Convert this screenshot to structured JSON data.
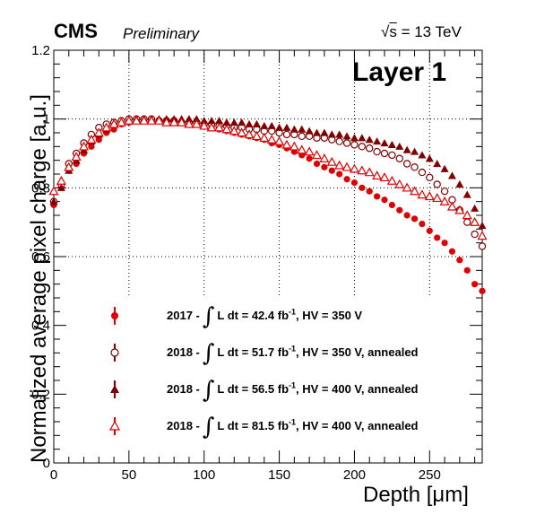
{
  "header": {
    "experiment": "CMS",
    "status": "Preliminary",
    "energy": "= 13 TeV",
    "energy_symbol": "s",
    "panel_label": "Layer 1"
  },
  "chart_data": {
    "type": "scatter",
    "xlabel": "Depth [μm]",
    "ylabel": "Normalized average pixel charge [a.u.]",
    "xlim": [
      0,
      285
    ],
    "ylim": [
      0,
      1.2
    ],
    "x_ticks": [
      "0",
      "50",
      "100",
      "150",
      "200",
      "250"
    ],
    "y_ticks": [
      "0",
      "0.2",
      "0.4",
      "0.6",
      "0.8",
      "1",
      "1.2"
    ],
    "grid": "dotted",
    "legend_position": "bottom-left",
    "x": [
      0,
      5,
      10,
      15,
      20,
      25,
      30,
      35,
      40,
      45,
      50,
      55,
      60,
      65,
      70,
      75,
      80,
      85,
      90,
      95,
      100,
      105,
      110,
      115,
      120,
      125,
      130,
      135,
      140,
      145,
      150,
      155,
      160,
      165,
      170,
      175,
      180,
      185,
      190,
      195,
      200,
      205,
      210,
      215,
      220,
      225,
      230,
      235,
      240,
      245,
      250,
      255,
      260,
      265,
      270,
      275,
      280,
      285
    ],
    "series": [
      {
        "name": "2017",
        "year": "2017 -",
        "formula": "L dt = 42.4 fb",
        "exp": "-1",
        "extra": ", HV = 350 V",
        "marker": "circle-filled",
        "color": "#e00000",
        "values": [
          0.75,
          0.8,
          0.85,
          0.87,
          0.9,
          0.92,
          0.94,
          0.96,
          0.97,
          0.985,
          0.99,
          0.995,
          0.995,
          0.995,
          0.995,
          0.993,
          0.99,
          0.99,
          0.985,
          0.985,
          0.98,
          0.975,
          0.97,
          0.965,
          0.96,
          0.955,
          0.95,
          0.945,
          0.94,
          0.93,
          0.925,
          0.915,
          0.905,
          0.895,
          0.885,
          0.87,
          0.86,
          0.85,
          0.84,
          0.825,
          0.815,
          0.8,
          0.79,
          0.775,
          0.765,
          0.75,
          0.735,
          0.72,
          0.71,
          0.695,
          0.675,
          0.655,
          0.64,
          0.615,
          0.59,
          0.56,
          0.52,
          0.5
        ]
      },
      {
        "name": "2018a",
        "year": "2018 -",
        "formula": "L dt = 51.7 fb",
        "exp": "-1",
        "extra": ", HV = 350 V, annealed",
        "marker": "circle-open",
        "color": "#800000",
        "values": [
          0.76,
          0.81,
          0.87,
          0.9,
          0.93,
          0.955,
          0.975,
          0.985,
          0.99,
          0.995,
          1.0,
          1.0,
          1.0,
          1.0,
          0.995,
          0.995,
          0.995,
          0.99,
          0.99,
          0.99,
          0.985,
          0.985,
          0.98,
          0.98,
          0.975,
          0.975,
          0.97,
          0.97,
          0.965,
          0.965,
          0.96,
          0.955,
          0.955,
          0.95,
          0.95,
          0.945,
          0.945,
          0.94,
          0.935,
          0.93,
          0.925,
          0.92,
          0.915,
          0.905,
          0.9,
          0.895,
          0.885,
          0.87,
          0.86,
          0.845,
          0.83,
          0.81,
          0.79,
          0.765,
          0.735,
          0.7,
          0.665,
          0.63
        ]
      },
      {
        "name": "2018b",
        "year": "2018 -",
        "formula": "L dt = 56.5 fb",
        "exp": "-1",
        "extra": ", HV = 400 V, annealed",
        "marker": "triangle-filled",
        "color": "#800000",
        "values": [
          0.76,
          0.8,
          0.85,
          0.88,
          0.91,
          0.935,
          0.955,
          0.97,
          0.985,
          0.99,
          0.995,
          1.0,
          1.0,
          1.0,
          1.0,
          1.0,
          1.0,
          1.0,
          1.0,
          1.0,
          0.995,
          0.995,
          0.995,
          0.99,
          0.99,
          0.99,
          0.985,
          0.985,
          0.98,
          0.98,
          0.975,
          0.975,
          0.97,
          0.97,
          0.965,
          0.96,
          0.96,
          0.955,
          0.955,
          0.95,
          0.945,
          0.945,
          0.94,
          0.935,
          0.93,
          0.925,
          0.92,
          0.91,
          0.905,
          0.895,
          0.885,
          0.87,
          0.855,
          0.835,
          0.81,
          0.78,
          0.74,
          0.69
        ]
      },
      {
        "name": "2018c",
        "year": "2018 -",
        "formula": "L dt = 81.5 fb",
        "exp": "-1",
        "extra": ", HV = 400 V, annealed",
        "marker": "triangle-open",
        "color": "#e00000",
        "values": [
          0.79,
          0.82,
          0.86,
          0.89,
          0.92,
          0.94,
          0.96,
          0.975,
          0.985,
          0.99,
          0.995,
          0.995,
          0.995,
          0.995,
          0.995,
          0.99,
          0.99,
          0.99,
          0.985,
          0.985,
          0.98,
          0.975,
          0.975,
          0.97,
          0.965,
          0.96,
          0.955,
          0.95,
          0.945,
          0.94,
          0.935,
          0.925,
          0.92,
          0.91,
          0.905,
          0.895,
          0.885,
          0.875,
          0.865,
          0.86,
          0.855,
          0.85,
          0.845,
          0.835,
          0.83,
          0.82,
          0.81,
          0.8,
          0.79,
          0.78,
          0.775,
          0.77,
          0.76,
          0.745,
          0.735,
          0.72,
          0.7,
          0.66
        ]
      }
    ]
  }
}
